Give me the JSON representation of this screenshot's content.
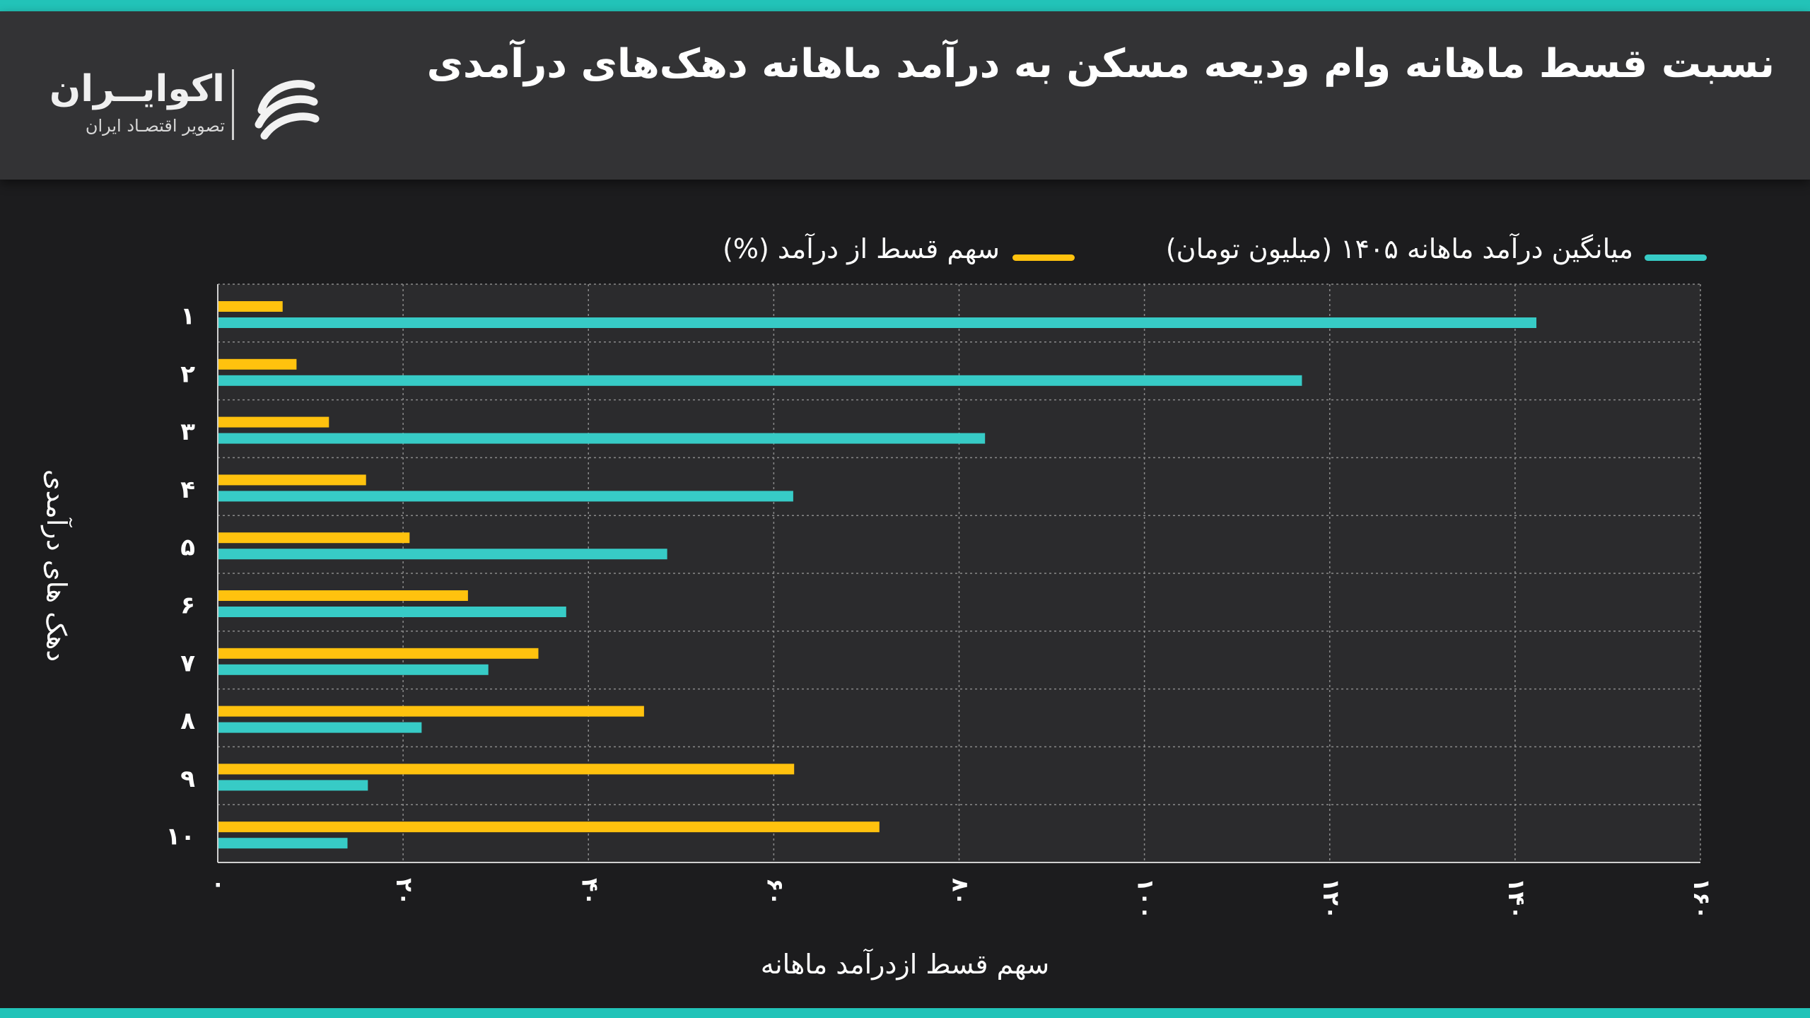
{
  "header": {
    "title": "نسبت قسط ماهانه وام ودیعه مسکن به درآمد ماهانه دهک‌های درآمدی",
    "logo_name": "اکوایــران",
    "logo_tagline": "تصویر اقتصـاد ایران"
  },
  "colors": {
    "accent": "#22c3b8",
    "income": "#37cbc6",
    "share": "#ffc20e",
    "background": "#1c1c1e",
    "plot_area": "#2b2b2d",
    "header": "#333335"
  },
  "legend": {
    "income_label": "میانگین درآمد ماهانه ۱۴۰۵ (میلیون تومان)",
    "share_label": "سهم قسط از درآمد (%)"
  },
  "chart_data": {
    "type": "bar",
    "orientation": "horizontal",
    "title": "نسبت قسط ماهانه وام ودیعه مسکن به درآمد ماهانه دهک‌های درآمدی",
    "xlabel": "سهم قسط ازدرآمد ماهانه",
    "ylabel": "دهک های درآمدی",
    "categories": [
      "۱",
      "۲",
      "۳",
      "۴",
      "۵",
      "۶",
      "۷",
      "۸",
      "۹",
      "۱۰"
    ],
    "xlim": [
      0,
      160
    ],
    "xticks": [
      0,
      20,
      40,
      60,
      80,
      100,
      120,
      140,
      160
    ],
    "xtick_labels": [
      "۰",
      "۲۰",
      "۴۰",
      "۶۰",
      "۸۰",
      "۱۰۰",
      "۱۲۰",
      "۱۴۰",
      "۱۶۰"
    ],
    "grid": true,
    "legend_position": "top",
    "series": [
      {
        "name": "سهم قسط از درآمد (%)",
        "color": "#ffc20e",
        "values": [
          7,
          8.5,
          12,
          16,
          20.7,
          27,
          34.6,
          46,
          62.2,
          71.4
        ]
      },
      {
        "name": "میانگین درآمد ماهانه ۱۴۰۵ (میلیون تومان)",
        "color": "#37cbc6",
        "values": [
          142.3,
          117,
          82.8,
          62.1,
          48.5,
          37.6,
          29.2,
          22,
          16.2,
          14
        ]
      }
    ]
  }
}
